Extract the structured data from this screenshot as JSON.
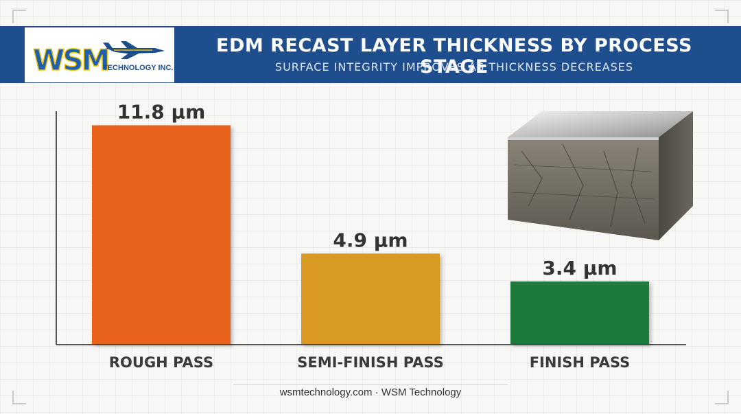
{
  "header": {
    "title": "EDM RECAST LAYER THICKNESS BY PROCESS STAGE",
    "subtitle": "SURFACE INTEGRITY IMPROVES AS THICKNESS DECREASES"
  },
  "logo": {
    "brand": "WSM",
    "tagline": "TECHNOLOGY INC."
  },
  "footer": {
    "text": "wsmtechnology.com · WSM Technology"
  },
  "chart_data": {
    "type": "bar",
    "categories": [
      "ROUGH PASS",
      "SEMI-FINISH PASS",
      "FINISH PASS"
    ],
    "values": [
      11.8,
      4.9,
      3.4
    ],
    "unit": "µm",
    "data_labels": [
      "11.8 µm",
      "4.9 µm",
      "3.4 µm"
    ],
    "colors": [
      "#e8621c",
      "#d89a22",
      "#1c7a3c"
    ],
    "ylim": [
      0,
      13
    ],
    "grid": false,
    "legend": "none"
  },
  "colors": {
    "banner": "#1f4e8f",
    "title_text": "#ffffff",
    "axis": "#555555",
    "label_text": "#3a3a3a"
  }
}
